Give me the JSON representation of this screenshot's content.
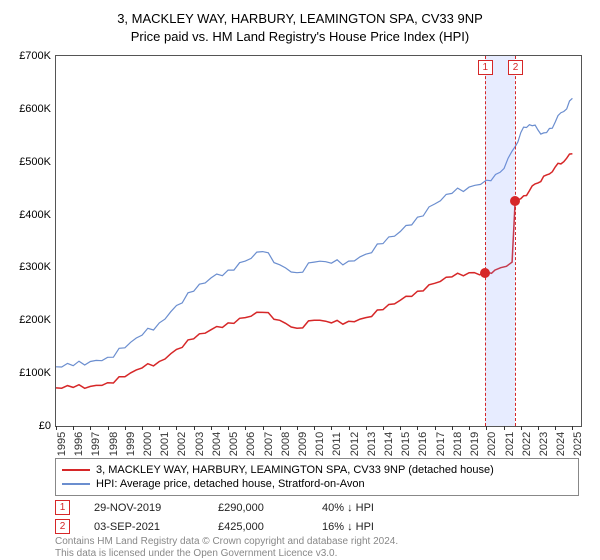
{
  "title": {
    "line1": "3, MACKLEY WAY, HARBURY, LEAMINGTON SPA, CV33 9NP",
    "line2": "Price paid vs. HM Land Registry's House Price Index (HPI)",
    "fontsize": 13
  },
  "colors": {
    "series1": "#d62728",
    "series2": "#6b8ecf",
    "axis": "#555555",
    "grid": "#e0e0e0",
    "highlight": "rgba(120,150,255,0.18)",
    "text": "#000000",
    "footnote": "#888888"
  },
  "chart": {
    "type": "line",
    "x_domain": [
      1995,
      2025.5
    ],
    "y_domain": [
      0,
      700000
    ],
    "y_ticks": [
      0,
      100000,
      200000,
      300000,
      400000,
      500000,
      600000,
      700000
    ],
    "y_tick_labels": [
      "£0",
      "£100K",
      "£200K",
      "£300K",
      "£400K",
      "£500K",
      "£600K",
      "£700K"
    ],
    "x_ticks": [
      1995,
      1996,
      1997,
      1998,
      1999,
      2000,
      2001,
      2002,
      2003,
      2004,
      2005,
      2006,
      2007,
      2008,
      2009,
      2010,
      2011,
      2012,
      2013,
      2014,
      2015,
      2016,
      2017,
      2018,
      2019,
      2020,
      2021,
      2022,
      2023,
      2024,
      2025
    ],
    "highlight_band": {
      "x_start": 2019.91,
      "x_end": 2021.67
    },
    "event_markers": [
      {
        "num": "1",
        "x": 2019.91,
        "y": 290000,
        "color": "#d62728"
      },
      {
        "num": "2",
        "x": 2021.67,
        "y": 425000,
        "color": "#d62728"
      }
    ],
    "series": [
      {
        "name": "property",
        "color": "#d62728",
        "width": 1.5,
        "points": [
          [
            1995,
            72000
          ],
          [
            1996,
            73000
          ],
          [
            1997,
            75000
          ],
          [
            1998,
            82000
          ],
          [
            1999,
            93000
          ],
          [
            2000,
            110000
          ],
          [
            2001,
            122000
          ],
          [
            2002,
            145000
          ],
          [
            2003,
            165000
          ],
          [
            2004,
            182000
          ],
          [
            2005,
            195000
          ],
          [
            2006,
            205000
          ],
          [
            2007,
            215000
          ],
          [
            2008,
            200000
          ],
          [
            2009,
            185000
          ],
          [
            2010,
            200000
          ],
          [
            2011,
            195000
          ],
          [
            2012,
            198000
          ],
          [
            2013,
            205000
          ],
          [
            2014,
            220000
          ],
          [
            2015,
            238000
          ],
          [
            2016,
            255000
          ],
          [
            2017,
            270000
          ],
          [
            2018,
            282000
          ],
          [
            2019,
            290000
          ],
          [
            2019.91,
            290000
          ],
          [
            2020.5,
            295000
          ],
          [
            2021.5,
            310000
          ],
          [
            2021.67,
            425000
          ],
          [
            2022,
            430000
          ],
          [
            2022.5,
            445000
          ],
          [
            2023,
            460000
          ],
          [
            2023.5,
            475000
          ],
          [
            2024,
            490000
          ],
          [
            2024.5,
            500000
          ],
          [
            2025,
            515000
          ]
        ]
      },
      {
        "name": "hpi",
        "color": "#6b8ecf",
        "width": 1.2,
        "points": [
          [
            1995,
            112000
          ],
          [
            1996,
            114000
          ],
          [
            1997,
            122000
          ],
          [
            1998,
            130000
          ],
          [
            1999,
            148000
          ],
          [
            2000,
            172000
          ],
          [
            2001,
            195000
          ],
          [
            2002,
            228000
          ],
          [
            2003,
            255000
          ],
          [
            2004,
            280000
          ],
          [
            2005,
            295000
          ],
          [
            2006,
            312000
          ],
          [
            2007,
            330000
          ],
          [
            2008,
            305000
          ],
          [
            2009,
            290000
          ],
          [
            2010,
            310000
          ],
          [
            2011,
            308000
          ],
          [
            2012,
            312000
          ],
          [
            2013,
            325000
          ],
          [
            2014,
            345000
          ],
          [
            2015,
            368000
          ],
          [
            2016,
            395000
          ],
          [
            2017,
            420000
          ],
          [
            2018,
            440000
          ],
          [
            2019,
            452000
          ],
          [
            2020,
            465000
          ],
          [
            2020.8,
            480000
          ],
          [
            2021.5,
            520000
          ],
          [
            2022,
            555000
          ],
          [
            2022.5,
            570000
          ],
          [
            2023,
            560000
          ],
          [
            2023.5,
            555000
          ],
          [
            2024,
            575000
          ],
          [
            2024.5,
            595000
          ],
          [
            2025,
            620000
          ]
        ]
      }
    ]
  },
  "legend": {
    "items": [
      {
        "color": "#d62728",
        "label": "3, MACKLEY WAY, HARBURY, LEAMINGTON SPA, CV33 9NP (detached house)"
      },
      {
        "color": "#6b8ecf",
        "label": "HPI: Average price, detached house, Stratford-on-Avon"
      }
    ]
  },
  "events": [
    {
      "num": "1",
      "color": "#d62728",
      "date": "29-NOV-2019",
      "price": "£290,000",
      "change": "40% ↓ HPI"
    },
    {
      "num": "2",
      "color": "#d62728",
      "date": "03-SEP-2021",
      "price": "£425,000",
      "change": "16% ↓ HPI"
    }
  ],
  "footnote": {
    "line1": "Contains HM Land Registry data © Crown copyright and database right 2024.",
    "line2": "This data is licensed under the Open Government Licence v3.0."
  }
}
